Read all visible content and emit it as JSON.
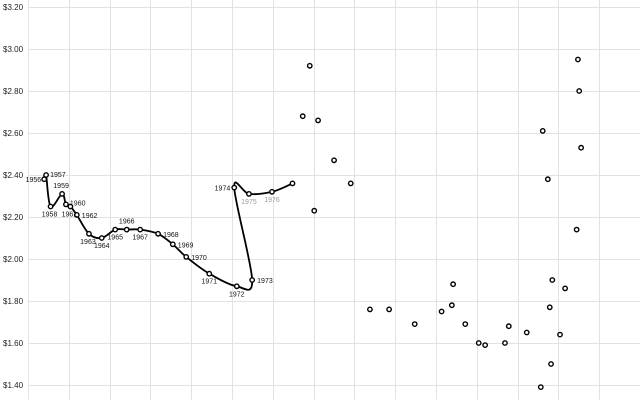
{
  "chart_data": {
    "type": "scatter",
    "title": "",
    "xlabel": "",
    "ylabel": "",
    "ylim": [
      1.36,
      3.22
    ],
    "grid": true,
    "y_ticks": [
      {
        "value": 3.2,
        "label": "$3.20"
      },
      {
        "value": 3.0,
        "label": "$3.00"
      },
      {
        "value": 2.8,
        "label": "$2.80"
      },
      {
        "value": 2.6,
        "label": "$2.60"
      },
      {
        "value": 2.4,
        "label": "$2.40"
      },
      {
        "value": 2.2,
        "label": "$2.20"
      },
      {
        "value": 2.0,
        "label": "$2.00"
      },
      {
        "value": 1.8,
        "label": "$1.80"
      },
      {
        "value": 1.6,
        "label": "$1.60"
      },
      {
        "value": 1.4,
        "label": "$1.40"
      }
    ],
    "x_grid_count": 15,
    "labeled_series": [
      {
        "label": "1956",
        "x": 0.069,
        "y": 2.38
      },
      {
        "label": "1957",
        "x": 0.072,
        "y": 2.4
      },
      {
        "label": "1958",
        "x": 0.079,
        "y": 2.25
      },
      {
        "label": "1959",
        "x": 0.097,
        "y": 2.31
      },
      {
        "label": "1960",
        "x": 0.103,
        "y": 2.26
      },
      {
        "label": "1961",
        "x": 0.11,
        "y": 2.25
      },
      {
        "label": "1962",
        "x": 0.12,
        "y": 2.21
      },
      {
        "label": "1963",
        "x": 0.139,
        "y": 2.12
      },
      {
        "label": "1964",
        "x": 0.159,
        "y": 2.1
      },
      {
        "label": "1965",
        "x": 0.18,
        "y": 2.14
      },
      {
        "label": "1966",
        "x": 0.198,
        "y": 2.14
      },
      {
        "label": "1967",
        "x": 0.219,
        "y": 2.14
      },
      {
        "label": "1968",
        "x": 0.247,
        "y": 2.12
      },
      {
        "label": "1969",
        "x": 0.27,
        "y": 2.07
      },
      {
        "label": "1970",
        "x": 0.291,
        "y": 2.01
      },
      {
        "label": "1971",
        "x": 0.327,
        "y": 1.93
      },
      {
        "label": "1972",
        "x": 0.37,
        "y": 1.87
      },
      {
        "label": "1973",
        "x": 0.394,
        "y": 1.9
      },
      {
        "label": "1974",
        "x": 0.366,
        "y": 2.34
      },
      {
        "label": "1975",
        "x": 0.389,
        "y": 2.31
      },
      {
        "label": "1976",
        "x": 0.425,
        "y": 2.32
      },
      {
        "label": "",
        "x": 0.457,
        "y": 2.36
      }
    ],
    "unlabeled_points": [
      {
        "x": 0.473,
        "y": 2.68
      },
      {
        "x": 0.484,
        "y": 2.92
      },
      {
        "x": 0.491,
        "y": 2.23
      },
      {
        "x": 0.497,
        "y": 2.66
      },
      {
        "x": 0.522,
        "y": 2.47
      },
      {
        "x": 0.548,
        "y": 2.36
      },
      {
        "x": 0.578,
        "y": 1.76
      },
      {
        "x": 0.608,
        "y": 1.76
      },
      {
        "x": 0.648,
        "y": 1.69
      },
      {
        "x": 0.69,
        "y": 1.75
      },
      {
        "x": 0.706,
        "y": 1.78
      },
      {
        "x": 0.708,
        "y": 1.88
      },
      {
        "x": 0.727,
        "y": 1.69
      },
      {
        "x": 0.748,
        "y": 1.6
      },
      {
        "x": 0.758,
        "y": 1.59
      },
      {
        "x": 0.789,
        "y": 1.6
      },
      {
        "x": 0.795,
        "y": 1.68
      },
      {
        "x": 0.823,
        "y": 1.65
      },
      {
        "x": 0.845,
        "y": 1.39
      },
      {
        "x": 0.848,
        "y": 2.61
      },
      {
        "x": 0.856,
        "y": 2.38
      },
      {
        "x": 0.859,
        "y": 1.77
      },
      {
        "x": 0.861,
        "y": 1.5
      },
      {
        "x": 0.863,
        "y": 1.9
      },
      {
        "x": 0.875,
        "y": 1.64
      },
      {
        "x": 0.883,
        "y": 1.86
      },
      {
        "x": 0.901,
        "y": 2.14
      },
      {
        "x": 0.903,
        "y": 2.95
      },
      {
        "x": 0.905,
        "y": 2.8
      },
      {
        "x": 0.908,
        "y": 2.53
      }
    ]
  }
}
